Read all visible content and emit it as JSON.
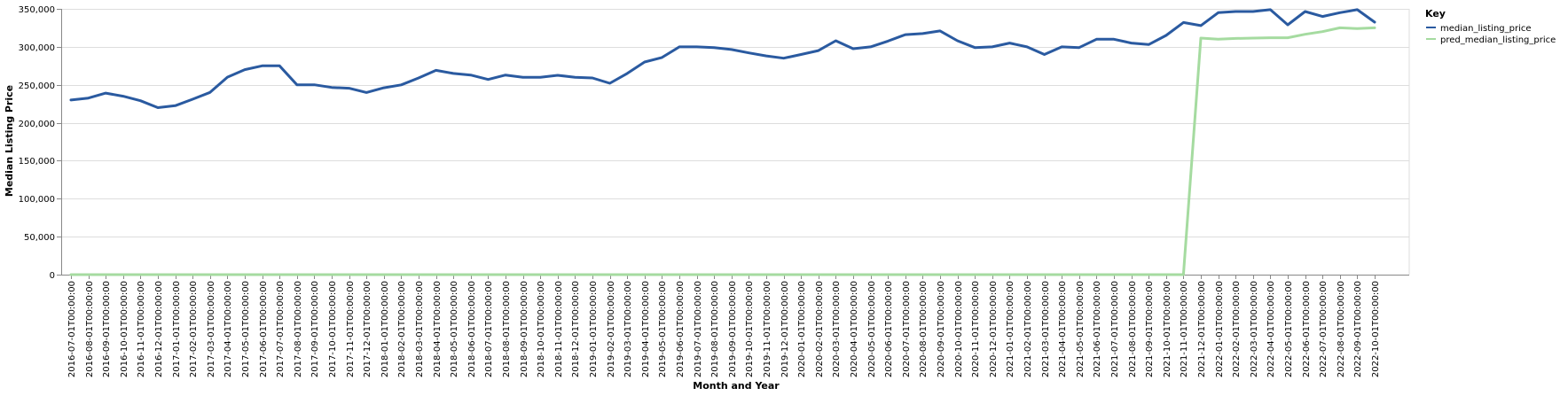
{
  "chart_data": {
    "type": "line",
    "xlabel": "Month and Year",
    "ylabel": "Median Listing Price",
    "ylim": [
      0,
      350000
    ],
    "yticks": [
      0,
      50000,
      100000,
      150000,
      200000,
      250000,
      300000,
      350000
    ],
    "ytick_labels": [
      "0",
      "50,000",
      "100,000",
      "150,000",
      "200,000",
      "250,000",
      "300,000",
      "350,000"
    ],
    "grid": true,
    "legend": {
      "title": "Key",
      "placement": "right"
    },
    "x": [
      "2016-07-01T00:00:00",
      "2016-08-01T00:00:00",
      "2016-09-01T00:00:00",
      "2016-10-01T00:00:00",
      "2016-11-01T00:00:00",
      "2016-12-01T00:00:00",
      "2017-01-01T00:00:00",
      "2017-02-01T00:00:00",
      "2017-03-01T00:00:00",
      "2017-04-01T00:00:00",
      "2017-05-01T00:00:00",
      "2017-06-01T00:00:00",
      "2017-07-01T00:00:00",
      "2017-08-01T00:00:00",
      "2017-09-01T00:00:00",
      "2017-10-01T00:00:00",
      "2017-11-01T00:00:00",
      "2017-12-01T00:00:00",
      "2018-01-01T00:00:00",
      "2018-02-01T00:00:00",
      "2018-03-01T00:00:00",
      "2018-04-01T00:00:00",
      "2018-05-01T00:00:00",
      "2018-06-01T00:00:00",
      "2018-07-01T00:00:00",
      "2018-08-01T00:00:00",
      "2018-09-01T00:00:00",
      "2018-10-01T00:00:00",
      "2018-11-01T00:00:00",
      "2018-12-01T00:00:00",
      "2019-01-01T00:00:00",
      "2019-02-01T00:00:00",
      "2019-03-01T00:00:00",
      "2019-04-01T00:00:00",
      "2019-05-01T00:00:00",
      "2019-06-01T00:00:00",
      "2019-07-01T00:00:00",
      "2019-08-01T00:00:00",
      "2019-09-01T00:00:00",
      "2019-10-01T00:00:00",
      "2019-11-01T00:00:00",
      "2019-12-01T00:00:00",
      "2020-01-01T00:00:00",
      "2020-02-01T00:00:00",
      "2020-03-01T00:00:00",
      "2020-04-01T00:00:00",
      "2020-05-01T00:00:00",
      "2020-06-01T00:00:00",
      "2020-07-01T00:00:00",
      "2020-08-01T00:00:00",
      "2020-09-01T00:00:00",
      "2020-10-01T00:00:00",
      "2020-11-01T00:00:00",
      "2020-12-01T00:00:00",
      "2021-01-01T00:00:00",
      "2021-02-01T00:00:00",
      "2021-03-01T00:00:00",
      "2021-04-01T00:00:00",
      "2021-05-01T00:00:00",
      "2021-06-01T00:00:00",
      "2021-07-01T00:00:00",
      "2021-08-01T00:00:00",
      "2021-09-01T00:00:00",
      "2021-10-01T00:00:00",
      "2021-11-01T00:00:00",
      "2021-12-01T00:00:00",
      "2022-01-01T00:00:00",
      "2022-02-01T00:00:00",
      "2022-03-01T00:00:00",
      "2022-04-01T00:00:00",
      "2022-05-01T00:00:00",
      "2022-06-01T00:00:00",
      "2022-07-01T00:00:00",
      "2022-08-01T00:00:00",
      "2022-09-01T00:00:00",
      "2022-10-01T00:00:00"
    ],
    "series": [
      {
        "name": "median_listing_price",
        "color": "#2a5aa0",
        "values": [
          229900,
          232500,
          239000,
          235000,
          229000,
          219900,
          222500,
          231000,
          240000,
          260000,
          270000,
          275000,
          275000,
          250000,
          250000,
          246500,
          245500,
          239900,
          246000,
          249900,
          259000,
          269000,
          265000,
          262900,
          257000,
          262900,
          259900,
          259900,
          262500,
          259900,
          259000,
          252000,
          265000,
          280000,
          286000,
          300000,
          300000,
          299000,
          296500,
          292000,
          288000,
          285000,
          289900,
          295000,
          308000,
          297500,
          300000,
          307500,
          316000,
          317500,
          321000,
          308000,
          299000,
          299900,
          305000,
          300000,
          289900,
          299900,
          299000,
          310000,
          310000,
          305000,
          303000,
          315000,
          332000,
          328000,
          345000,
          346500,
          346500,
          349000,
          329000,
          346500,
          340000,
          345000,
          349000,
          332500
        ]
      },
      {
        "name": "pred_median_listing_price",
        "color": "#a5dba0",
        "values": [
          0,
          0,
          0,
          0,
          0,
          0,
          0,
          0,
          0,
          0,
          0,
          0,
          0,
          0,
          0,
          0,
          0,
          0,
          0,
          0,
          0,
          0,
          0,
          0,
          0,
          0,
          0,
          0,
          0,
          0,
          0,
          0,
          0,
          0,
          0,
          0,
          0,
          0,
          0,
          0,
          0,
          0,
          0,
          0,
          0,
          0,
          0,
          0,
          0,
          0,
          0,
          0,
          0,
          0,
          0,
          0,
          0,
          0,
          0,
          0,
          0,
          0,
          0,
          0,
          0,
          311500,
          310000,
          311000,
          311500,
          312000,
          312000,
          316500,
          320000,
          325000,
          324000,
          325000
        ]
      }
    ]
  },
  "legend": {
    "title": "Key",
    "items": [
      {
        "label": "median_listing_price",
        "color": "#2a5aa0"
      },
      {
        "label": "pred_median_listing_price",
        "color": "#a5dba0"
      }
    ]
  },
  "axes": {
    "x_title": "Month and Year",
    "y_title": "Median Listing Price"
  }
}
